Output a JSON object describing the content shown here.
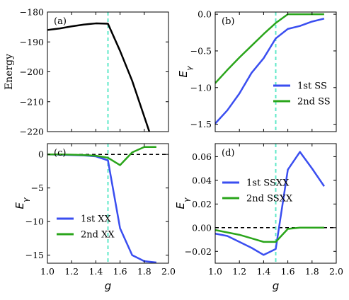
{
  "colors": {
    "black": "#000000",
    "blue": "#3a4ef0",
    "green": "#2aa51b",
    "cyan": "#5fe8c8"
  },
  "chart_data": [
    {
      "tag": "(a)",
      "type": "line",
      "ylabel": "Energy",
      "xlim": [
        1.0,
        2.0
      ],
      "ylim": [
        -220,
        -180
      ],
      "yticks": [
        -180,
        -190,
        -200,
        -210,
        -220
      ],
      "xticks": [],
      "grid": false,
      "vline_x": 1.5,
      "zero_line": false,
      "legend": null,
      "series": [
        {
          "color": "black",
          "x": [
            1.0,
            1.1,
            1.2,
            1.3,
            1.4,
            1.5,
            1.6,
            1.7,
            1.8,
            1.85
          ],
          "y": [
            -186,
            -185.5,
            -184.8,
            -184.2,
            -183.8,
            -183.9,
            -193,
            -203,
            -215,
            -221
          ]
        }
      ]
    },
    {
      "tag": "(b)",
      "type": "line",
      "ylabel": "E_γ",
      "xlim": [
        1.0,
        2.0
      ],
      "ylim": [
        -1.6,
        0.03
      ],
      "yticks": [
        0.0,
        -0.5,
        -1.0,
        -1.5
      ],
      "xticks": [],
      "grid": false,
      "vline_x": 1.5,
      "zero_line": false,
      "legend": "center-right",
      "series": [
        {
          "name": "1st SS",
          "color": "blue",
          "x": [
            1.0,
            1.1,
            1.2,
            1.3,
            1.4,
            1.5,
            1.6,
            1.7,
            1.8,
            1.9
          ],
          "y": [
            -1.49,
            -1.31,
            -1.08,
            -0.8,
            -0.6,
            -0.33,
            -0.2,
            -0.16,
            -0.1,
            -0.06
          ]
        },
        {
          "name": "2nd SS",
          "color": "green",
          "x": [
            1.0,
            1.1,
            1.2,
            1.3,
            1.4,
            1.5,
            1.6,
            1.7,
            1.8,
            1.9
          ],
          "y": [
            -0.94,
            -0.76,
            -0.59,
            -0.43,
            -0.27,
            -0.12,
            0.0,
            0.0,
            0.0,
            0.0
          ]
        }
      ]
    },
    {
      "tag": "(c)",
      "type": "line",
      "ylabel": "E_γ",
      "xlabel": "g",
      "xlim": [
        1.0,
        2.0
      ],
      "ylim": [
        -16.2,
        1.6
      ],
      "yticks": [
        0,
        -5,
        -10,
        -15
      ],
      "xticks": [
        1.0,
        1.2,
        1.4,
        1.6,
        1.8,
        2.0
      ],
      "grid": false,
      "vline_x": 1.5,
      "zero_line": true,
      "legend": "lower-left",
      "series": [
        {
          "name": "1st XX",
          "color": "blue",
          "x": [
            1.0,
            1.1,
            1.2,
            1.3,
            1.4,
            1.5,
            1.6,
            1.7,
            1.8,
            1.9
          ],
          "y": [
            0.0,
            -0.05,
            -0.1,
            -0.15,
            -0.3,
            -0.9,
            -11.0,
            -15.0,
            -15.9,
            -16.1
          ]
        },
        {
          "name": "2nd XX",
          "color": "green",
          "x": [
            1.0,
            1.1,
            1.2,
            1.3,
            1.4,
            1.5,
            1.6,
            1.7,
            1.8,
            1.9
          ],
          "y": [
            0.0,
            0.0,
            -0.05,
            -0.1,
            -0.2,
            -0.5,
            -1.6,
            0.3,
            1.1,
            1.1
          ]
        }
      ]
    },
    {
      "tag": "(d)",
      "type": "line",
      "ylabel": "E_γ",
      "xlabel": "g",
      "xlim": [
        1.0,
        2.0
      ],
      "ylim": [
        -0.03,
        0.071
      ],
      "yticks": [
        0.06,
        0.04,
        0.02,
        0.0,
        -0.02
      ],
      "ytick_labels": [
        "0.06",
        "0.04",
        "0.02",
        "0.00",
        "−0.02"
      ],
      "xticks": [
        1.0,
        1.2,
        1.4,
        1.6,
        1.8,
        2.0
      ],
      "grid": false,
      "vline_x": 1.5,
      "zero_line": true,
      "legend": "upper-left",
      "series": [
        {
          "name": "1st SSXX",
          "color": "blue",
          "x": [
            1.0,
            1.1,
            1.2,
            1.3,
            1.4,
            1.5,
            1.6,
            1.7,
            1.8,
            1.9
          ],
          "y": [
            -0.005,
            -0.007,
            -0.012,
            -0.017,
            -0.023,
            -0.018,
            0.049,
            0.064,
            0.05,
            0.035
          ]
        },
        {
          "name": "2nd SSXX",
          "color": "green",
          "x": [
            1.0,
            1.1,
            1.2,
            1.3,
            1.4,
            1.5,
            1.6,
            1.7,
            1.8,
            1.9
          ],
          "y": [
            -0.002,
            -0.004,
            -0.006,
            -0.009,
            -0.012,
            -0.012,
            -0.001,
            0.0,
            0.0,
            0.0
          ]
        }
      ]
    }
  ]
}
